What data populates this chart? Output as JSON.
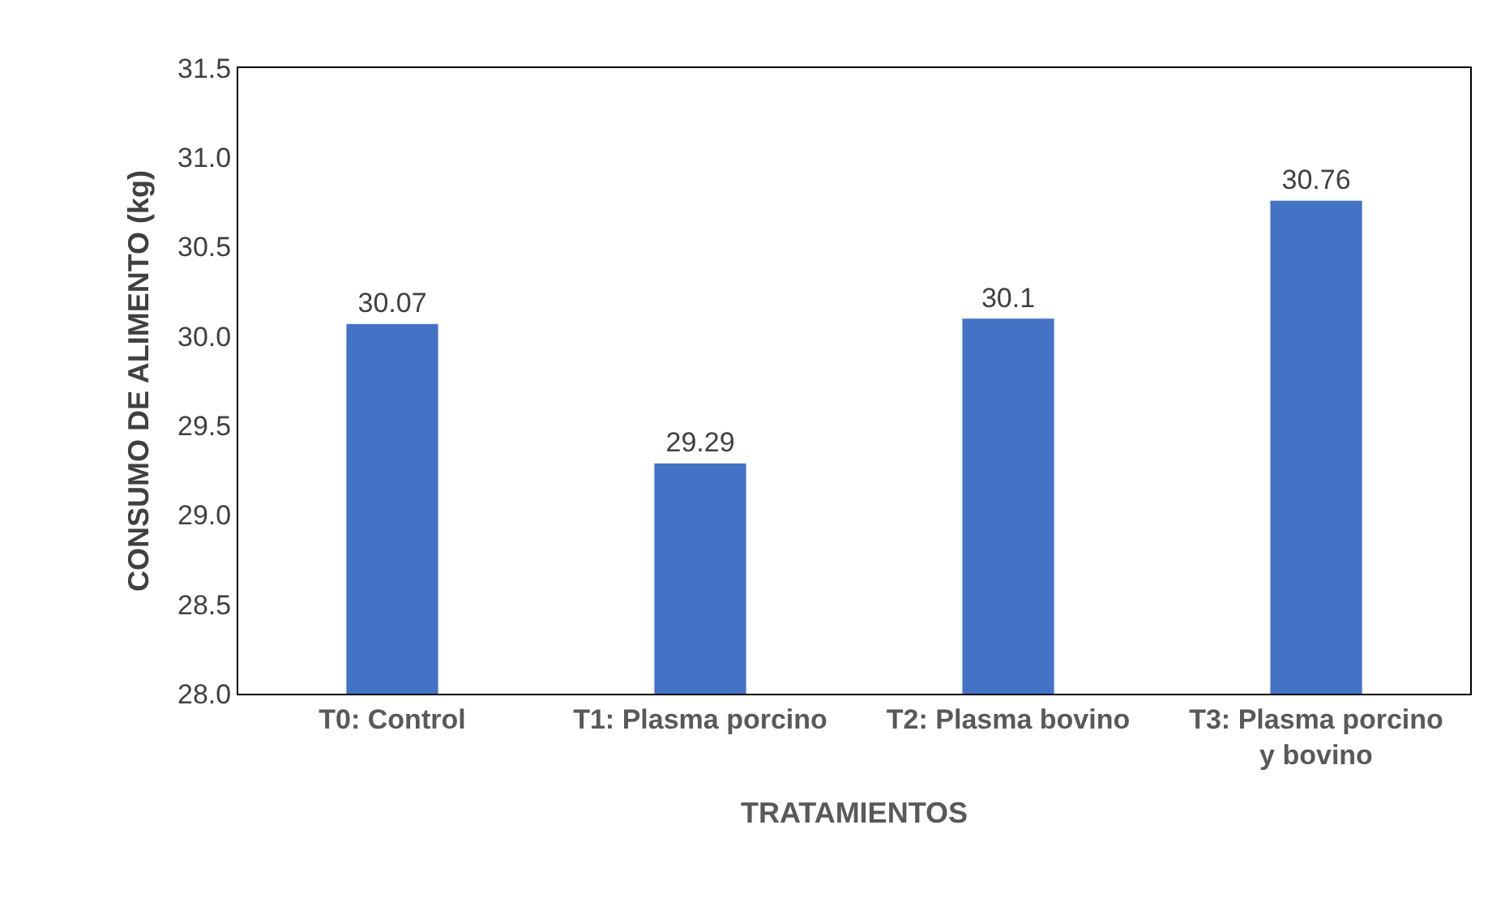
{
  "chart_data": {
    "type": "bar",
    "xlabel": "TRATAMIENTOS",
    "ylabel": "CONSUMO DE ALIMENTO (kg)",
    "categories": [
      "T0: Control",
      "T1: Plasma porcino",
      "T2: Plasma bovino",
      "T3: Plasma porcino y bovino"
    ],
    "values": [
      30.07,
      29.29,
      30.1,
      30.76
    ],
    "color": "#4472c4",
    "ylim": [
      28,
      31.5
    ],
    "yticks": [
      {
        "value": 28,
        "label": "28.0"
      },
      {
        "value": 28.5,
        "label": "28.5"
      },
      {
        "value": 29,
        "label": "29.0"
      },
      {
        "value": 29.5,
        "label": "29.5"
      },
      {
        "value": 30,
        "label": "30.0"
      },
      {
        "value": 30.5,
        "label": "30.5"
      },
      {
        "value": 31,
        "label": "31.0"
      },
      {
        "value": 31.5,
        "label": "31.5"
      }
    ],
    "data_labels": true
  }
}
